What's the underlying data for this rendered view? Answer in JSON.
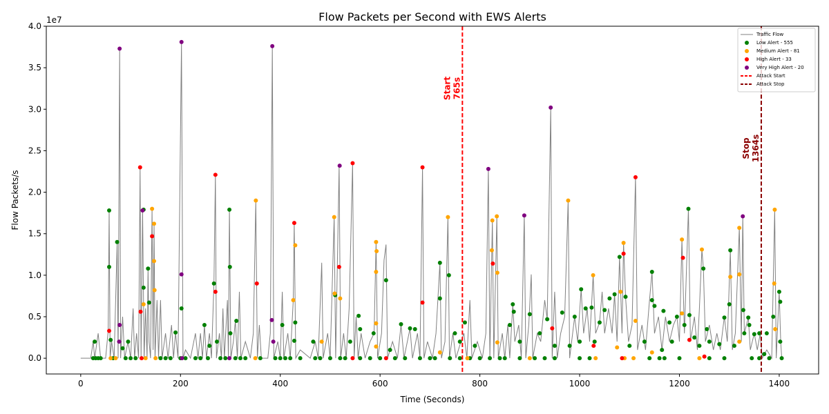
{
  "chart_data": {
    "type": "line",
    "title": "Flow Packets per Second with EWS Alerts",
    "xlabel": "Time (Seconds)",
    "ylabel": "Flow Packets/s",
    "y_offset_label": "1e7",
    "xlim": [
      -69,
      1479
    ],
    "ylim": [
      -0.19,
      4.0
    ],
    "xticks": [
      0,
      200,
      400,
      600,
      800,
      1000,
      1200,
      1400
    ],
    "yticks": [
      {
        "value": 0,
        "label": "0.0"
      },
      {
        "value": 0.5,
        "label": "0.5"
      },
      {
        "value": 1,
        "label": "1.0"
      },
      {
        "value": 1.5,
        "label": "1.5"
      },
      {
        "value": 2,
        "label": "2.0"
      },
      {
        "value": 2.5,
        "label": "2.5"
      },
      {
        "value": 3,
        "label": "3.0"
      },
      {
        "value": 3.5,
        "label": "3.5"
      },
      {
        "value": 4,
        "label": "4.0"
      }
    ],
    "legend": "upper right",
    "series": [
      {
        "name": "Traffic Flow",
        "type": "line",
        "color": "#808080",
        "x": [
          0,
          20,
          25,
          28,
          35,
          40,
          50,
          55,
          57,
          59,
          62,
          67,
          73,
          75,
          78,
          80,
          84,
          88,
          95,
          100,
          105,
          108,
          112,
          116,
          119,
          121,
          124,
          127,
          130,
          133,
          135,
          137,
          140,
          143,
          145,
          147,
          149,
          153,
          156,
          160,
          163,
          170,
          175,
          182,
          186,
          190,
          195,
          202,
          205,
          210,
          220,
          230,
          235,
          240,
          244,
          248,
          252,
          258,
          262,
          267,
          270,
          272,
          278,
          282,
          285,
          288,
          294,
          296,
          298,
          301,
          306,
          310,
          314,
          318,
          321,
          330,
          340,
          346,
          351,
          354,
          358,
          362,
          375,
          380,
          384,
          387,
          395,
          400,
          404,
          407,
          415,
          420,
          426,
          428,
          431,
          440,
          460,
          470,
          476,
          483,
          486,
          495,
          500,
          504,
          508,
          511,
          518,
          521,
          527,
          532,
          538,
          545,
          548,
          552,
          556,
          562,
          570,
          580,
          588,
          592,
          595,
          603,
          608,
          612,
          615,
          625,
          635,
          642,
          648,
          660,
          665,
          675,
          680,
          685,
          688,
          695,
          705,
          712,
          720,
          723,
          730,
          736,
          739,
          746,
          752,
          762,
          768,
          774,
          780,
          784,
          795,
          805,
          812,
          817,
          820,
          825,
          828,
          834,
          837,
          845,
          850,
          856,
          860,
          866,
          870,
          878,
          883,
          889,
          892,
          898,
          903,
          906,
          915,
          922,
          930,
          935,
          942,
          945,
          950,
          955,
          962,
          970,
          977,
          980,
          990,
          996,
          1003,
          1008,
          1015,
          1020,
          1027,
          1032,
          1040,
          1045,
          1050,
          1058,
          1065,
          1070,
          1075,
          1080,
          1085,
          1088,
          1092,
          1098,
          1105,
          1112,
          1116,
          1125,
          1132,
          1140,
          1145,
          1150,
          1158,
          1165,
          1172,
          1180,
          1188,
          1195,
          1200,
          1205,
          1210,
          1218,
          1222,
          1230,
          1236,
          1240,
          1245,
          1248,
          1252,
          1260,
          1268,
          1275,
          1282,
          1290,
          1296,
          1302,
          1306,
          1312,
          1320,
          1324,
          1327,
          1330,
          1338,
          1342,
          1350,
          1356,
          1362,
          1366,
          1375,
          1385,
          1391,
          1394,
          1400,
          1403,
          1405
        ],
        "values": [
          0.0,
          0.0,
          0.2,
          0.0,
          0.3,
          0.0,
          0.0,
          0.33,
          1.78,
          0.0,
          0.2,
          0.0,
          1.4,
          0.0,
          3.73,
          0.0,
          0.5,
          0.0,
          0.2,
          0.0,
          0.6,
          0.0,
          0.3,
          0.0,
          2.3,
          0.0,
          1.79,
          0.0,
          0.6,
          0.0,
          1.08,
          0.2,
          0.0,
          1.8,
          0.1,
          1.62,
          0.0,
          0.7,
          0.0,
          0.7,
          0.0,
          0.3,
          0.0,
          0.4,
          0.0,
          0.31,
          0.0,
          3.81,
          0.0,
          0.1,
          0.0,
          0.3,
          0.0,
          0.3,
          0.0,
          0.4,
          0.0,
          0.3,
          0.0,
          0.9,
          2.21,
          0.0,
          0.3,
          0.0,
          0.6,
          0.0,
          0.7,
          0.0,
          1.79,
          0.0,
          0.2,
          0.45,
          0.0,
          0.8,
          0.0,
          0.2,
          0.0,
          0.3,
          1.9,
          0.0,
          0.4,
          0.0,
          0.0,
          0.3,
          3.76,
          0.0,
          0.2,
          0.0,
          0.8,
          0.0,
          0.3,
          0.0,
          0.7,
          1.63,
          0.0,
          0.1,
          0.0,
          0.2,
          0.0,
          1.15,
          0.0,
          0.3,
          0.0,
          0.84,
          1.7,
          0.0,
          2.32,
          0.0,
          0.3,
          0.0,
          0.6,
          2.35,
          0.0,
          0.5,
          0.0,
          0.3,
          0.0,
          0.2,
          0.3,
          1.4,
          0.0,
          0.3,
          1.18,
          1.37,
          0.0,
          0.2,
          0.0,
          0.4,
          0.0,
          0.36,
          0.0,
          0.3,
          0.0,
          2.3,
          0.0,
          0.2,
          0.0,
          0.3,
          1.15,
          0.0,
          0.2,
          1.7,
          0.0,
          0.3,
          0.0,
          0.2,
          0.3,
          0.0,
          0.7,
          0.0,
          0.2,
          0.0,
          0.3,
          2.28,
          0.0,
          1.66,
          0.0,
          1.71,
          0.0,
          0.3,
          0.0,
          0.4,
          0.0,
          0.65,
          0.2,
          0.4,
          0.0,
          1.72,
          0.0,
          0.4,
          1.01,
          0.0,
          0.3,
          0.2,
          0.7,
          0.47,
          3.02,
          0.0,
          0.8,
          0.0,
          0.3,
          0.5,
          1.9,
          0.0,
          0.5,
          0.2,
          0.83,
          0.3,
          0.6,
          0.2,
          1.0,
          0.3,
          0.43,
          0.8,
          0.3,
          0.6,
          0.3,
          0.77,
          0.2,
          1.22,
          0.3,
          1.39,
          0.74,
          0.2,
          0.4,
          2.18,
          0.1,
          0.4,
          0.1,
          0.7,
          1.04,
          0.3,
          0.5,
          0.1,
          0.5,
          0.2,
          0.4,
          0.5,
          0.2,
          1.43,
          0.3,
          1.8,
          0.2,
          0.5,
          0.1,
          0.6,
          1.31,
          1.08,
          0.2,
          0.4,
          0.1,
          0.3,
          0.1,
          0.5,
          0.2,
          1.3,
          0.1,
          0.3,
          1.57,
          0.2,
          1.71,
          0.3,
          0.49,
          0.1,
          0.3,
          0.1,
          0.3,
          0.0,
          0.1,
          0.0,
          1.79,
          0.0,
          0.8,
          0.2,
          0.0
        ]
      },
      {
        "name": "Low Alert - 555",
        "type": "scatter",
        "color": "#008000",
        "x": [
          57,
          57,
          73,
          126,
          126,
          135,
          137,
          298,
          299,
          267,
          202,
          312,
          248,
          404,
          430,
          428,
          720,
          720,
          738,
          612,
          557,
          642,
          660,
          770,
          866,
          868,
          900,
          1003,
          1080,
          1092,
          1145,
          1218,
          1302,
          1248,
          1300,
          1338,
          1340,
          1328,
          1388,
          1400,
          1402,
          1402,
          1145,
          1150,
          1070,
          1060,
          1012,
          1024,
          990,
          965,
          935,
          1040,
          1050,
          1180,
          1195,
          1210,
          1220,
          1168,
          1230,
          1255,
          1260,
          1290,
          1280,
          1330,
          1350,
          1375,
          1360,
          28,
          60,
          84,
          95,
          190,
          258,
          273,
          300,
          466,
          510,
          540,
          560,
          587,
          620,
          670,
          750,
          760,
          790,
          860,
          880,
          920,
          950,
          980,
          1000,
          1030,
          1100,
          1130,
          1165,
          1185,
          1240,
          1310,
          1370,
          25,
          30,
          35,
          40,
          65,
          90,
          100,
          110,
          160,
          170,
          180,
          200,
          210,
          230,
          240,
          255,
          280,
          290,
          310,
          320,
          330,
          360,
          390,
          400,
          410,
          420,
          440,
          470,
          480,
          500,
          520,
          530,
          560,
          580,
          600,
          630,
          650,
          680,
          700,
          710,
          740,
          760,
          780,
          800,
          820,
          840,
          850,
          880,
          910,
          930,
          950,
          1000,
          1020,
          1140,
          1160,
          1170,
          1200,
          1260,
          1290,
          1345,
          1360,
          1380,
          1405
        ],
        "values": [
          1.78,
          1.1,
          1.4,
          1.79,
          0.85,
          1.08,
          0.67,
          1.79,
          1.1,
          0.9,
          0.6,
          0.45,
          0.4,
          0.4,
          0.43,
          0.21,
          1.15,
          0.72,
          1.0,
          0.94,
          0.51,
          0.41,
          0.36,
          0.43,
          0.65,
          0.56,
          0.53,
          0.83,
          1.22,
          0.74,
          1.04,
          1.8,
          1.3,
          1.08,
          0.65,
          0.49,
          0.4,
          0.58,
          0.5,
          0.8,
          0.68,
          0.2,
          0.7,
          0.63,
          0.77,
          0.72,
          0.6,
          0.61,
          0.5,
          0.55,
          0.47,
          0.43,
          0.58,
          0.43,
          0.5,
          0.4,
          0.52,
          0.57,
          0.25,
          0.35,
          0.2,
          0.49,
          0.17,
          0.3,
          0.29,
          0.3,
          0.3,
          0.2,
          0.22,
          0.12,
          0.2,
          0.31,
          0.15,
          0.2,
          0.3,
          0.2,
          0.76,
          0.2,
          0.35,
          0.3,
          0.1,
          0.35,
          0.3,
          0.2,
          0.15,
          0.4,
          0.2,
          0.3,
          0.15,
          0.15,
          0.2,
          0.2,
          0.15,
          0.2,
          0.1,
          0.2,
          0.15,
          0.15,
          0.05,
          0.0,
          0.0,
          0.0,
          0.0,
          0.0,
          0.0,
          0.0,
          0.0,
          0.0,
          0.0,
          0.0,
          0.0,
          0.0,
          0.0,
          0.0,
          0.0,
          0.0,
          0.0,
          0.0,
          0.0,
          0.0,
          0.0,
          0.0,
          0.0,
          0.0,
          0.0,
          0.0,
          0.0,
          0.0,
          0.0,
          0.0,
          0.0,
          0.0,
          0.0,
          0.0,
          0.0,
          0.0,
          0.0,
          0.0,
          0.0,
          0.0,
          0.0,
          0.0,
          0.0,
          0.0,
          0.0,
          0.0,
          0.0,
          0.0,
          0.0,
          0.0,
          0.0,
          0.0,
          0.0,
          0.0,
          0.0,
          0.0,
          0.0,
          0.0,
          0.0,
          0.0,
          0.0,
          0.0
        ]
      },
      {
        "name": "Medium Alert - 81",
        "type": "scatter",
        "color": "#ffa500",
        "x": [
          143,
          351,
          508,
          736,
          834,
          977,
          1391,
          147,
          825,
          1320,
          1205,
          592,
          1088,
          430,
          593,
          824,
          1245,
          147,
          1027,
          1320,
          835,
          1302,
          592,
          1390,
          1082,
          148,
          426,
          520,
          509,
          592,
          1205,
          1112,
          1392,
          126,
          1075,
          1145,
          835,
          483,
          592,
          720,
          60,
          70,
          130,
          150,
          350,
          1032,
          1090,
          1320,
          1108,
          775,
          900,
          1240
        ],
        "values": [
          1.8,
          1.9,
          1.7,
          1.7,
          1.71,
          1.9,
          1.79,
          1.62,
          1.66,
          1.57,
          1.43,
          1.4,
          1.39,
          1.36,
          1.29,
          1.3,
          1.31,
          1.17,
          1.0,
          1.01,
          1.03,
          0.98,
          1.04,
          0.9,
          0.8,
          0.82,
          0.7,
          0.72,
          0.78,
          0.42,
          0.54,
          0.45,
          0.35,
          0.65,
          0.13,
          0.07,
          0.19,
          0.2,
          0.14,
          0.07,
          0.0,
          0.0,
          0.0,
          0.0,
          0.0,
          0.0,
          0.0,
          0.2,
          0.0,
          0.0,
          0.0,
          0.0
        ]
      },
      {
        "name": "High Alert - 33",
        "type": "scatter",
        "color": "#ff0000",
        "x": [
          119,
          270,
          545,
          685,
          1112,
          428,
          143,
          353,
          270,
          518,
          826,
          1088,
          1207,
          685,
          120,
          57,
          1220,
          945,
          1028,
          1085,
          545,
          122,
          612,
          1250
        ],
        "values": [
          2.3,
          2.21,
          2.35,
          2.3,
          2.18,
          1.63,
          1.47,
          0.9,
          0.8,
          1.1,
          1.14,
          1.26,
          1.21,
          0.67,
          0.56,
          0.33,
          0.22,
          0.36,
          0.15,
          0.0,
          0.0,
          0.0,
          0.0,
          0.02
        ]
      },
      {
        "name": "Very High Alert - 20",
        "type": "scatter",
        "color": "#800080",
        "x": [
          78,
          202,
          384,
          942,
          519,
          817,
          124,
          889,
          1327,
          202,
          383,
          386,
          78,
          77,
          203,
          298
        ],
        "values": [
          3.73,
          3.81,
          3.76,
          3.02,
          2.32,
          2.28,
          1.78,
          1.72,
          1.71,
          1.01,
          0.46,
          0.2,
          0.4,
          0.2,
          0.0,
          0.0
        ]
      }
    ],
    "vlines": [
      {
        "name": "Attack Start",
        "x": 765,
        "color": "#ff0000",
        "label": [
          "Start",
          "765s"
        ]
      },
      {
        "name": "Attack Stop",
        "x": 1364,
        "color": "#8b0000",
        "label": [
          "Stop",
          "1364s"
        ]
      }
    ]
  }
}
